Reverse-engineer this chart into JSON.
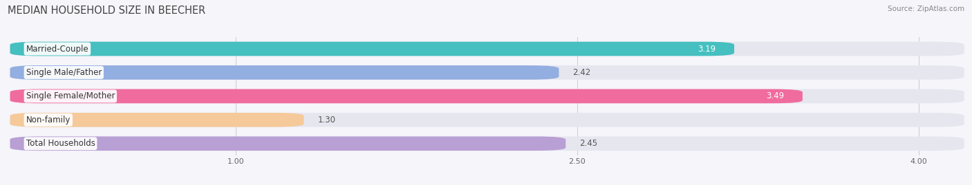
{
  "title": "MEDIAN HOUSEHOLD SIZE IN BEECHER",
  "source": "Source: ZipAtlas.com",
  "categories": [
    "Married-Couple",
    "Single Male/Father",
    "Single Female/Mother",
    "Non-family",
    "Total Households"
  ],
  "values": [
    3.19,
    2.42,
    3.49,
    1.3,
    2.45
  ],
  "bar_colors": [
    "#45bfbf",
    "#93aee0",
    "#f06b9e",
    "#f5c99a",
    "#b89fd4"
  ],
  "value_colors": [
    "white",
    "#666666",
    "white",
    "#666666",
    "#666666"
  ],
  "xmin": 0,
  "xmax": 4.2,
  "xticks": [
    1.0,
    2.5,
    4.0
  ],
  "xtick_labels": [
    "1.00",
    "2.50",
    "4.00"
  ],
  "background_color": "#f5f5fa",
  "bar_background": "#e6e6ef",
  "title_fontsize": 10.5,
  "label_fontsize": 8.5,
  "value_fontsize": 8.5,
  "source_fontsize": 7.5,
  "bar_height": 0.6,
  "bar_gap": 1.0,
  "fig_width": 14.06,
  "fig_height": 2.69
}
